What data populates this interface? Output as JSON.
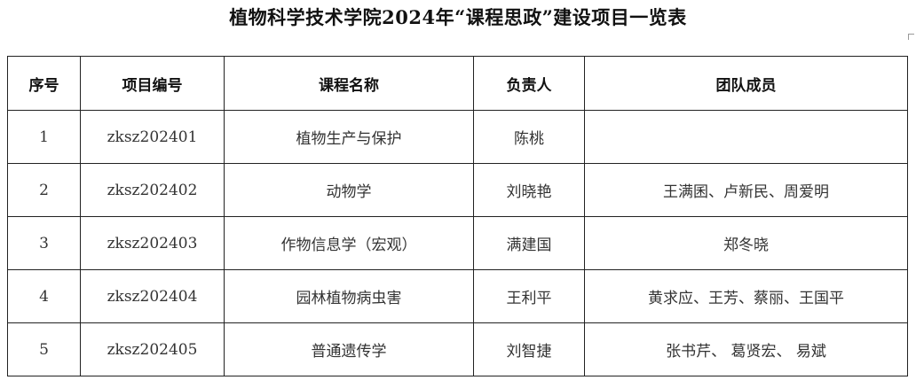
{
  "title": "植物科学技术学院2024年“课程思政”建设项目一览表",
  "table": {
    "headers": [
      "序号",
      "项目编号",
      "课程名称",
      "负责人",
      "团队成员"
    ],
    "rows": [
      [
        "1",
        "zksz202401",
        "植物生产与保护",
        "陈桃",
        ""
      ],
      [
        "2",
        "zksz202402",
        "动物学",
        "刘晓艳",
        "王满囷、卢新民、周爱明"
      ],
      [
        "3",
        "zksz202403",
        "作物信息学（宏观）",
        "满建国",
        "郑冬晓"
      ],
      [
        "4",
        "zksz202404",
        "园林植物病虫害",
        "王利平",
        "黄求应、王芳、蔡丽、王国平"
      ],
      [
        "5",
        "zksz202405",
        "普通遗传学",
        "刘智捷",
        "张书芹、 葛贤宏、 易斌"
      ]
    ]
  }
}
